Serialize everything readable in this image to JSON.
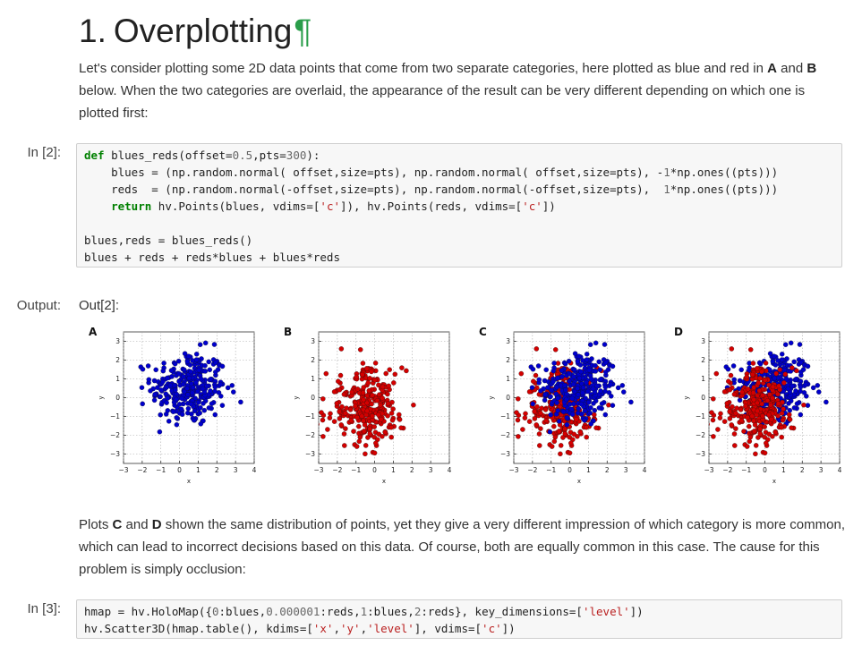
{
  "heading": {
    "number": "1.",
    "title": "Overplotting",
    "anchor": "¶"
  },
  "intro": {
    "before_a": "Let's consider plotting some 2D data points that come from two separate categories, here plotted as blue and red in ",
    "a": "A",
    "and": " and ",
    "b": "B",
    "after_b": " below. When the two categories are overlaid, the appearance of the result can be very different depending on which one is plotted first:"
  },
  "cell2": {
    "prompt": "In [2]:",
    "code_tokens": [
      [
        {
          "t": "def",
          "c": "kw"
        },
        {
          "t": " blues_reds(offset="
        },
        {
          "t": "0.5",
          "c": "nm"
        },
        {
          "t": ",pts="
        },
        {
          "t": "300",
          "c": "nm"
        },
        {
          "t": "):"
        }
      ],
      [
        {
          "t": "    blues = (np.random.normal( offset,size=pts), np.random.normal( offset,size=pts), -"
        },
        {
          "t": "1",
          "c": "nm"
        },
        {
          "t": "*np.ones((pts)))"
        }
      ],
      [
        {
          "t": "    reds  = (np.random.normal(-offset,size=pts), np.random.normal(-offset,size=pts),  "
        },
        {
          "t": "1",
          "c": "nm"
        },
        {
          "t": "*np.ones((pts)))"
        }
      ],
      [
        {
          "t": "    "
        },
        {
          "t": "return",
          "c": "kw"
        },
        {
          "t": " hv.Points(blues, vdims=["
        },
        {
          "t": "'c'",
          "c": "st"
        },
        {
          "t": "]), hv.Points(reds, vdims=["
        },
        {
          "t": "'c'",
          "c": "st"
        },
        {
          "t": "])"
        }
      ],
      [
        {
          "t": ""
        }
      ],
      [
        {
          "t": "blues,reds = blues_reds()"
        }
      ],
      [
        {
          "t": "blues + reds + reds*blues + blues*reds"
        }
      ]
    ]
  },
  "output": {
    "prompt": "Output:",
    "out_label": "Out[2]:"
  },
  "colors": {
    "blue": "#0000cc",
    "red": "#d40000",
    "green": "#2a9d4a"
  },
  "chart_data": [
    {
      "type": "scatter",
      "panel_label": "A",
      "xlabel": "x",
      "ylabel": "y",
      "xlim": [
        -3,
        4
      ],
      "ylim": [
        -3.5,
        3.5
      ],
      "xticks": [
        "−3",
        "−2",
        "−1",
        "0",
        "1",
        "2",
        "3",
        "4"
      ],
      "yticks": [
        "−3",
        "−2",
        "−1",
        "0",
        "1",
        "2",
        "3"
      ],
      "series": [
        {
          "color": "#0000cc",
          "center": [
            0.5,
            0.5
          ],
          "n": 300
        }
      ],
      "grid": true
    },
    {
      "type": "scatter",
      "panel_label": "B",
      "xlabel": "x",
      "ylabel": "y",
      "xlim": [
        -3,
        4
      ],
      "ylim": [
        -3.5,
        3.5
      ],
      "xticks": [
        "−3",
        "−2",
        "−1",
        "0",
        "1",
        "2",
        "3",
        "4"
      ],
      "yticks": [
        "−3",
        "−2",
        "−1",
        "0",
        "1",
        "2",
        "3"
      ],
      "series": [
        {
          "color": "#d40000",
          "center": [
            -0.5,
            -0.5
          ],
          "n": 300
        }
      ],
      "grid": true
    },
    {
      "type": "scatter",
      "panel_label": "C",
      "xlabel": "x",
      "ylabel": "y",
      "xlim": [
        -3,
        4
      ],
      "ylim": [
        -3.5,
        3.5
      ],
      "xticks": [
        "−3",
        "−2",
        "−1",
        "0",
        "1",
        "2",
        "3",
        "4"
      ],
      "yticks": [
        "−3",
        "−2",
        "−1",
        "0",
        "1",
        "2",
        "3"
      ],
      "series": [
        {
          "color": "#d40000",
          "center": [
            -0.5,
            -0.5
          ],
          "n": 300
        },
        {
          "color": "#0000cc",
          "center": [
            0.5,
            0.5
          ],
          "n": 300
        }
      ],
      "grid": true
    },
    {
      "type": "scatter",
      "panel_label": "D",
      "xlabel": "x",
      "ylabel": "y",
      "xlim": [
        -3,
        4
      ],
      "ylim": [
        -3.5,
        3.5
      ],
      "xticks": [
        "−3",
        "−2",
        "−1",
        "0",
        "1",
        "2",
        "3",
        "4"
      ],
      "yticks": [
        "−3",
        "−2",
        "−1",
        "0",
        "1",
        "2",
        "3"
      ],
      "series": [
        {
          "color": "#0000cc",
          "center": [
            0.5,
            0.5
          ],
          "n": 300
        },
        {
          "color": "#d40000",
          "center": [
            -0.5,
            -0.5
          ],
          "n": 300
        }
      ],
      "grid": true
    }
  ],
  "para2": {
    "t1": "Plots ",
    "c": "C",
    "t2": " and ",
    "d": "D",
    "t3": " shown the same distribution of points, yet they give a very different impression of which category is more common, which can lead to incorrect decisions based on this data. Of course, both are equally common in this case. The cause for this problem is simply occlusion:"
  },
  "cell3": {
    "prompt": "In [3]:",
    "code_tokens": [
      [
        {
          "t": "hmap = hv.HoloMap({"
        },
        {
          "t": "0",
          "c": "nm"
        },
        {
          "t": ":blues,"
        },
        {
          "t": "0.000001",
          "c": "nm"
        },
        {
          "t": ":reds,"
        },
        {
          "t": "1",
          "c": "nm"
        },
        {
          "t": ":blues,"
        },
        {
          "t": "2",
          "c": "nm"
        },
        {
          "t": ":reds}, key_dimensions=["
        },
        {
          "t": "'level'",
          "c": "st"
        },
        {
          "t": "])"
        }
      ],
      [
        {
          "t": "hv.Scatter3D(hmap.table(), kdims=["
        },
        {
          "t": "'x'",
          "c": "st"
        },
        {
          "t": ","
        },
        {
          "t": "'y'",
          "c": "st"
        },
        {
          "t": ","
        },
        {
          "t": "'level'",
          "c": "st"
        },
        {
          "t": "], vdims=["
        },
        {
          "t": "'c'",
          "c": "st"
        },
        {
          "t": "])"
        }
      ]
    ]
  }
}
